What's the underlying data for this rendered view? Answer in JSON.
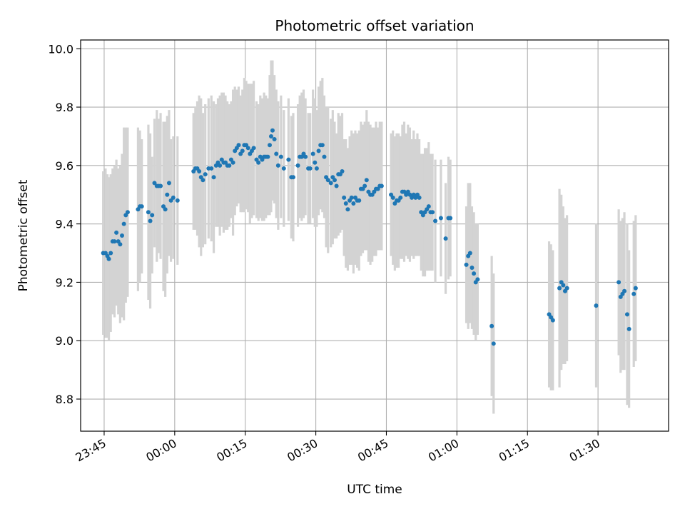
{
  "chart_data": {
    "type": "scatter",
    "title": "Photometric offset variation",
    "xlabel": "UTC time",
    "ylabel": "Photometric offset",
    "grid": true,
    "xlim_minutes": [
      -5,
      120
    ],
    "ylim": [
      8.69,
      10.03
    ],
    "x_ticks": [
      {
        "minutes": 0,
        "label": "23:45"
      },
      {
        "minutes": 15,
        "label": "00:00"
      },
      {
        "minutes": 30,
        "label": "00:15"
      },
      {
        "minutes": 45,
        "label": "00:30"
      },
      {
        "minutes": 60,
        "label": "00:45"
      },
      {
        "minutes": 75,
        "label": "01:00"
      },
      {
        "minutes": 90,
        "label": "01:15"
      },
      {
        "minutes": 105,
        "label": "01:30"
      }
    ],
    "y_ticks": [
      8.8,
      9.0,
      9.2,
      9.4,
      9.6,
      9.8,
      10.0
    ],
    "colors": {
      "point": "#1f77b4",
      "errorbar": "#d3d3d3",
      "grid": "#b0b0b0"
    },
    "series": [
      {
        "points": [
          [
            -0.2,
            9.3,
            0.28
          ],
          [
            0.3,
            9.3,
            0.29
          ],
          [
            0.7,
            9.29,
            0.28
          ],
          [
            1.0,
            9.28,
            0.28
          ],
          [
            1.4,
            9.3,
            0.27
          ],
          [
            1.8,
            9.34,
            0.25
          ],
          [
            2.2,
            9.34,
            0.26
          ],
          [
            2.6,
            9.37,
            0.25
          ],
          [
            3.0,
            9.34,
            0.25
          ],
          [
            3.4,
            9.33,
            0.27
          ],
          [
            3.8,
            9.36,
            0.28
          ],
          [
            4.2,
            9.4,
            0.33
          ],
          [
            4.6,
            9.43,
            0.3
          ],
          [
            5.0,
            9.44,
            0.29
          ],
          [
            7.2,
            9.45,
            0.28
          ],
          [
            7.6,
            9.46,
            0.26
          ],
          [
            8.0,
            9.46,
            0.23
          ],
          [
            9.4,
            9.44,
            0.3
          ],
          [
            9.8,
            9.41,
            0.3
          ],
          [
            10.2,
            9.43,
            0.2
          ],
          [
            10.7,
            9.54,
            0.22
          ],
          [
            11.2,
            9.53,
            0.26
          ],
          [
            11.6,
            9.53,
            0.23
          ],
          [
            12.0,
            9.53,
            0.25
          ],
          [
            12.6,
            9.46,
            0.29
          ],
          [
            13.0,
            9.45,
            0.3
          ],
          [
            13.4,
            9.5,
            0.27
          ],
          [
            13.8,
            9.54,
            0.25
          ],
          [
            14.2,
            9.48,
            0.21
          ],
          [
            14.7,
            9.49,
            0.21
          ],
          [
            15.6,
            9.48,
            0.22
          ],
          [
            19.0,
            9.58,
            0.2
          ],
          [
            19.4,
            9.59,
            0.21
          ],
          [
            19.8,
            9.59,
            0.23
          ],
          [
            20.2,
            9.58,
            0.26
          ],
          [
            20.6,
            9.56,
            0.27
          ],
          [
            21.0,
            9.55,
            0.23
          ],
          [
            21.5,
            9.57,
            0.24
          ],
          [
            22.2,
            9.59,
            0.24
          ],
          [
            22.8,
            9.59,
            0.25
          ],
          [
            23.3,
            9.56,
            0.26
          ],
          [
            23.8,
            9.6,
            0.21
          ],
          [
            24.2,
            9.61,
            0.22
          ],
          [
            24.6,
            9.6,
            0.24
          ],
          [
            25.0,
            9.62,
            0.23
          ],
          [
            25.4,
            9.61,
            0.24
          ],
          [
            25.8,
            9.61,
            0.23
          ],
          [
            26.2,
            9.6,
            0.22
          ],
          [
            26.6,
            9.6,
            0.21
          ],
          [
            27.0,
            9.62,
            0.2
          ],
          [
            27.4,
            9.61,
            0.25
          ],
          [
            27.8,
            9.65,
            0.22
          ],
          [
            28.2,
            9.66,
            0.2
          ],
          [
            28.6,
            9.67,
            0.2
          ],
          [
            29.0,
            9.64,
            0.2
          ],
          [
            29.4,
            9.65,
            0.21
          ],
          [
            29.8,
            9.67,
            0.23
          ],
          [
            30.2,
            9.67,
            0.22
          ],
          [
            30.6,
            9.66,
            0.22
          ],
          [
            31.0,
            9.64,
            0.24
          ],
          [
            31.4,
            9.65,
            0.23
          ],
          [
            31.8,
            9.66,
            0.23
          ],
          [
            32.4,
            9.62,
            0.2
          ],
          [
            32.8,
            9.61,
            0.2
          ],
          [
            33.2,
            9.63,
            0.21
          ],
          [
            33.6,
            9.62,
            0.21
          ],
          [
            34.0,
            9.63,
            0.22
          ],
          [
            34.4,
            9.63,
            0.21
          ],
          [
            34.8,
            9.63,
            0.2
          ],
          [
            35.2,
            9.67,
            0.24
          ],
          [
            35.5,
            9.7,
            0.26
          ],
          [
            35.8,
            9.72,
            0.24
          ],
          [
            36.2,
            9.69,
            0.22
          ],
          [
            36.6,
            9.64,
            0.22
          ],
          [
            37.0,
            9.6,
            0.22
          ],
          [
            37.6,
            9.63,
            0.21
          ],
          [
            38.2,
            9.59,
            0.2
          ],
          [
            39.2,
            9.62,
            0.21
          ],
          [
            39.8,
            9.56,
            0.21
          ],
          [
            40.2,
            9.56,
            0.22
          ],
          [
            41.2,
            9.6,
            0.21
          ],
          [
            41.6,
            9.63,
            0.21
          ],
          [
            42.0,
            9.63,
            0.22
          ],
          [
            42.4,
            9.64,
            0.22
          ],
          [
            42.8,
            9.63,
            0.2
          ],
          [
            43.4,
            9.59,
            0.19
          ],
          [
            43.8,
            9.59,
            0.19
          ],
          [
            44.4,
            9.64,
            0.22
          ],
          [
            44.8,
            9.61,
            0.22
          ],
          [
            45.2,
            9.59,
            0.2
          ],
          [
            45.6,
            9.65,
            0.22
          ],
          [
            46.0,
            9.67,
            0.22
          ],
          [
            46.4,
            9.67,
            0.23
          ],
          [
            46.8,
            9.63,
            0.21
          ],
          [
            47.2,
            9.56,
            0.24
          ],
          [
            47.6,
            9.55,
            0.25
          ],
          [
            48.2,
            9.54,
            0.22
          ],
          [
            48.6,
            9.56,
            0.23
          ],
          [
            49.0,
            9.55,
            0.2
          ],
          [
            49.4,
            9.53,
            0.18
          ],
          [
            49.8,
            9.57,
            0.21
          ],
          [
            50.2,
            9.57,
            0.2
          ],
          [
            50.6,
            9.58,
            0.2
          ],
          [
            51.0,
            9.49,
            0.2
          ],
          [
            51.4,
            9.47,
            0.22
          ],
          [
            51.8,
            9.45,
            0.21
          ],
          [
            52.2,
            9.48,
            0.22
          ],
          [
            52.6,
            9.49,
            0.23
          ],
          [
            53.0,
            9.47,
            0.24
          ],
          [
            53.4,
            9.49,
            0.23
          ],
          [
            53.8,
            9.48,
            0.23
          ],
          [
            54.2,
            9.48,
            0.24
          ],
          [
            54.6,
            9.52,
            0.23
          ],
          [
            55.0,
            9.52,
            0.22
          ],
          [
            55.4,
            9.53,
            0.22
          ],
          [
            55.8,
            9.55,
            0.24
          ],
          [
            56.2,
            9.51,
            0.24
          ],
          [
            56.6,
            9.5,
            0.24
          ],
          [
            57.0,
            9.5,
            0.23
          ],
          [
            57.4,
            9.51,
            0.22
          ],
          [
            57.8,
            9.52,
            0.23
          ],
          [
            58.2,
            9.52,
            0.21
          ],
          [
            58.6,
            9.53,
            0.22
          ],
          [
            59.0,
            9.53,
            0.22
          ],
          [
            61.0,
            9.5,
            0.21
          ],
          [
            61.4,
            9.49,
            0.23
          ],
          [
            61.8,
            9.47,
            0.23
          ],
          [
            62.2,
            9.48,
            0.23
          ],
          [
            62.6,
            9.48,
            0.23
          ],
          [
            63.0,
            9.49,
            0.21
          ],
          [
            63.4,
            9.51,
            0.23
          ],
          [
            63.8,
            9.51,
            0.24
          ],
          [
            64.2,
            9.5,
            0.21
          ],
          [
            64.6,
            9.51,
            0.23
          ],
          [
            65.0,
            9.5,
            0.23
          ],
          [
            65.4,
            9.49,
            0.2
          ],
          [
            65.8,
            9.5,
            0.22
          ],
          [
            66.2,
            9.49,
            0.2
          ],
          [
            66.6,
            9.5,
            0.21
          ],
          [
            67.0,
            9.49,
            0.2
          ],
          [
            67.4,
            9.44,
            0.2
          ],
          [
            67.8,
            9.43,
            0.21
          ],
          [
            68.2,
            9.44,
            0.22
          ],
          [
            68.6,
            9.45,
            0.21
          ],
          [
            69.0,
            9.46,
            0.22
          ],
          [
            69.4,
            9.44,
            0.2
          ],
          [
            69.8,
            9.44,
            0.2
          ],
          [
            70.4,
            9.41,
            0.21
          ],
          [
            71.6,
            9.42,
            0.2
          ],
          [
            72.6,
            9.35,
            0.19
          ],
          [
            73.2,
            9.42,
            0.21
          ],
          [
            73.6,
            9.42,
            0.2
          ],
          [
            77.0,
            9.26,
            0.2
          ],
          [
            77.4,
            9.29,
            0.25
          ],
          [
            77.8,
            9.3,
            0.24
          ],
          [
            78.2,
            9.25,
            0.21
          ],
          [
            78.6,
            9.23,
            0.21
          ],
          [
            79.0,
            9.2,
            0.2
          ],
          [
            79.4,
            9.21,
            0.19
          ],
          [
            82.4,
            9.05,
            0.24
          ],
          [
            82.8,
            8.99,
            0.24
          ],
          [
            94.6,
            9.09,
            0.25
          ],
          [
            95.0,
            9.08,
            0.25
          ],
          [
            95.4,
            9.07,
            0.24
          ],
          [
            96.8,
            9.18,
            0.34
          ],
          [
            97.2,
            9.2,
            0.3
          ],
          [
            97.6,
            9.19,
            0.27
          ],
          [
            98.0,
            9.17,
            0.25
          ],
          [
            98.4,
            9.18,
            0.25
          ],
          [
            104.6,
            9.12,
            0.28
          ],
          [
            109.4,
            9.2,
            0.25
          ],
          [
            109.8,
            9.15,
            0.26
          ],
          [
            110.2,
            9.16,
            0.26
          ],
          [
            110.6,
            9.17,
            0.27
          ],
          [
            111.2,
            9.09,
            0.31
          ],
          [
            111.6,
            9.04,
            0.27
          ],
          [
            112.6,
            9.16,
            0.25
          ],
          [
            113.0,
            9.18,
            0.25
          ]
        ]
      }
    ]
  }
}
